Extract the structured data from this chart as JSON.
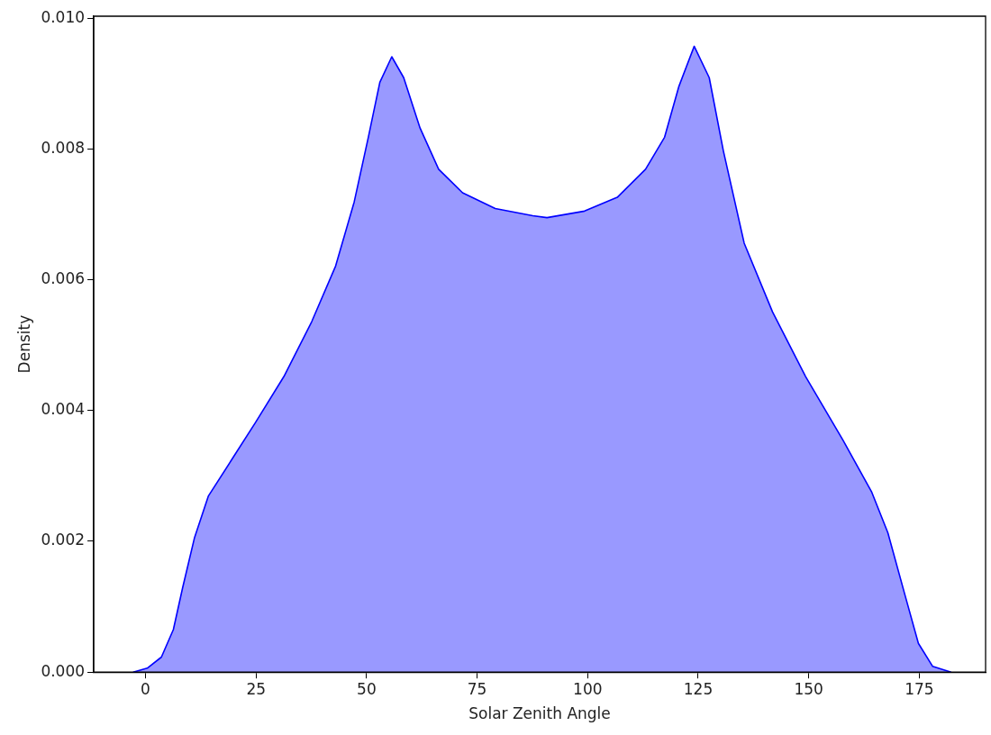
{
  "chart_data": {
    "type": "area",
    "xlabel": "Solar Zenith Angle",
    "ylabel": "Density",
    "xlim": [
      -11.7,
      190
    ],
    "ylim": [
      0,
      0.01003
    ],
    "xticks": [
      0,
      25,
      50,
      75,
      100,
      125,
      150,
      175
    ],
    "yticks": [
      {
        "value": 0,
        "label": "0.000"
      },
      {
        "value": 0.002,
        "label": "0.002"
      },
      {
        "value": 0.004,
        "label": "0.004"
      },
      {
        "value": 0.006,
        "label": "0.006"
      },
      {
        "value": 0.008,
        "label": "0.008"
      },
      {
        "value": 0.01,
        "label": "0.010"
      }
    ],
    "grid": false,
    "legend": false,
    "marker": "none",
    "line_style": "solid",
    "series": [
      {
        "color": "#0000ff",
        "x": [
          -2.8,
          0.4,
          3.6,
          6.3,
          8.4,
          11.1,
          14.2,
          19.6,
          24.9,
          31.3,
          37.6,
          43,
          47.2,
          50.4,
          53,
          55.7,
          58.4,
          62.1,
          66.3,
          71.7,
          79.1,
          87.6,
          90.8,
          99.3,
          106.7,
          113.1,
          117.4,
          120.6,
          124.1,
          127.5,
          130.7,
          135.4,
          141.8,
          149.3,
          157.8,
          164.2,
          167.9,
          171.6,
          174.8,
          178,
          182.2
        ],
        "values": [
          0,
          6e-05,
          0.00023,
          0.00065,
          0.00129,
          0.00206,
          0.00269,
          0.00326,
          0.00382,
          0.00452,
          0.00536,
          0.00621,
          0.00719,
          0.00818,
          0.00902,
          0.00941,
          0.00909,
          0.00832,
          0.00769,
          0.00733,
          0.00709,
          0.00698,
          0.00695,
          0.00705,
          0.00726,
          0.00769,
          0.00818,
          0.00895,
          0.00957,
          0.00909,
          0.00797,
          0.00656,
          0.00551,
          0.00452,
          0.00354,
          0.00276,
          0.00213,
          0.00122,
          0.00044,
          9e-05,
          0
        ]
      }
    ]
  }
}
